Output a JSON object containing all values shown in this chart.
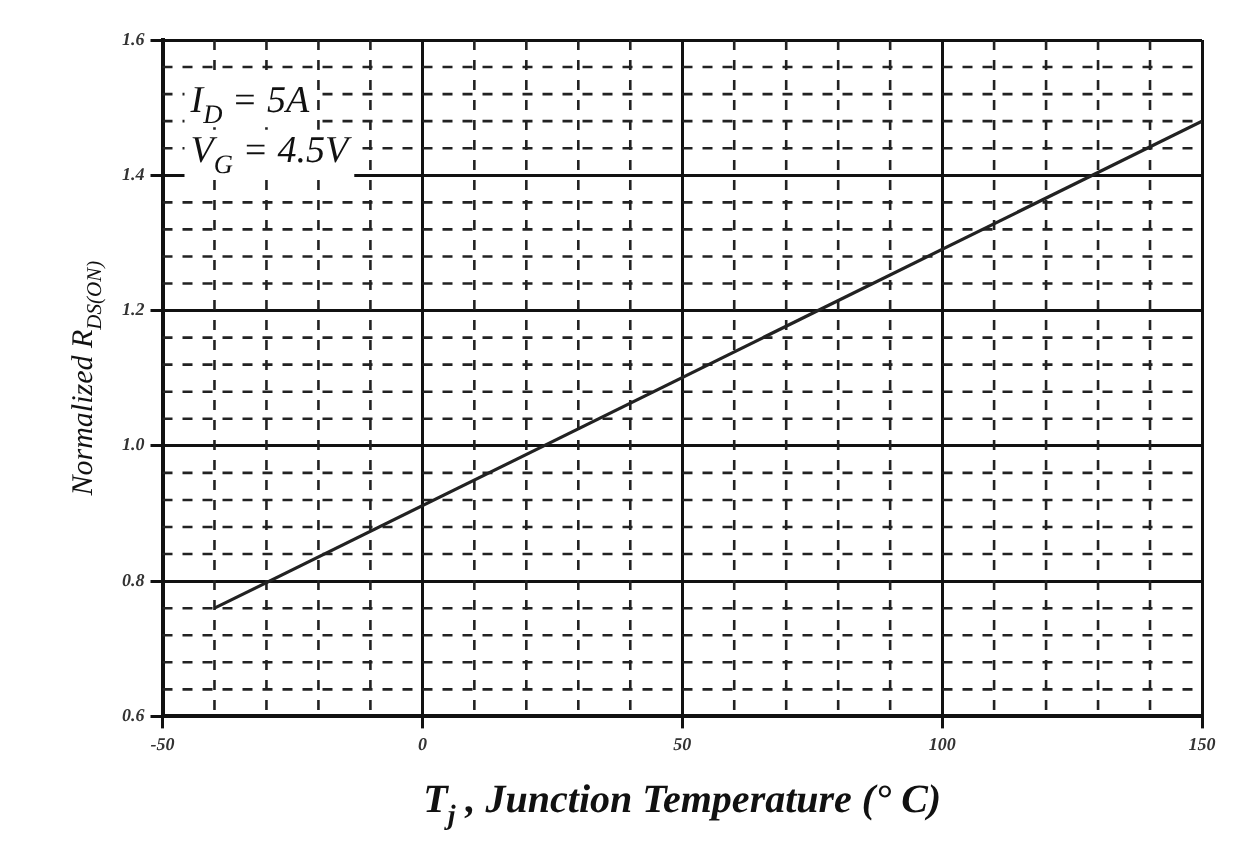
{
  "chart_data": {
    "type": "line",
    "xlabel": "T$_{j}$ , Junction Temperature (° C)",
    "ylabel": "Normalized R$_{DS(ON)}$",
    "annotations": [
      "I$_{D}$ = 5A",
      "V$_{G}$ = 4.5V"
    ],
    "x": [
      -40,
      150
    ],
    "series": [
      {
        "color": "#222222",
        "values": [
          0.76,
          1.48
        ]
      }
    ],
    "xlim": [
      -50,
      150
    ],
    "xticks": [
      -50,
      0,
      50,
      100,
      150
    ],
    "ylim": [
      0.6,
      1.6
    ],
    "yticks": [
      0.6,
      0.8,
      {
        "value": 1,
        "label": "1.0"
      },
      1.2,
      1.4,
      1.6
    ],
    "grid": true,
    "legend": false,
    "marker": "none",
    "line_style": "solid"
  }
}
